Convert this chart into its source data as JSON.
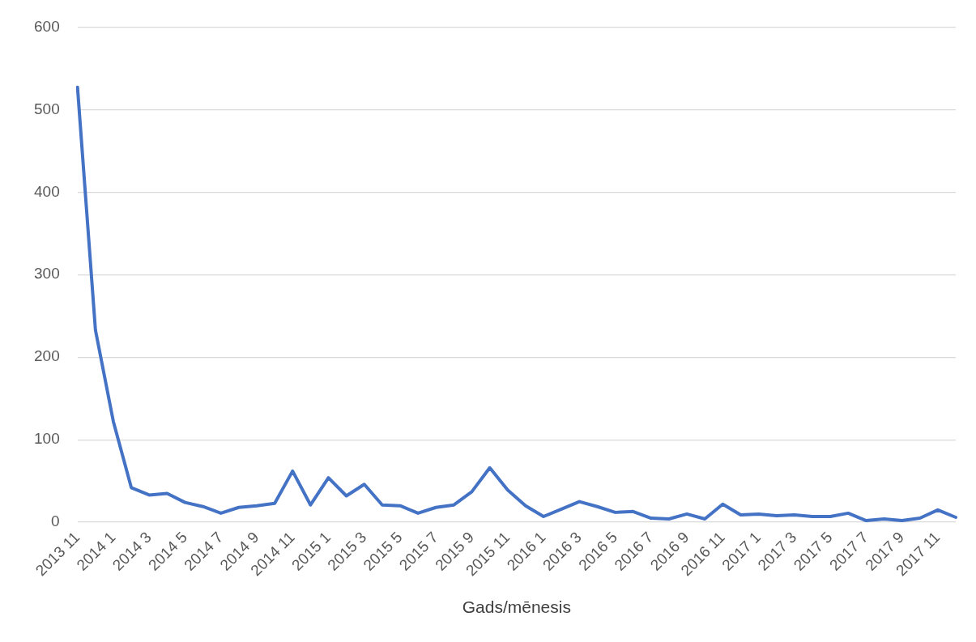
{
  "chart_data": {
    "type": "line",
    "xlabel": "Gads/mēnesis",
    "categories": [
      "2013 11",
      null,
      "2014 1",
      null,
      "2014 3",
      null,
      "2014 5",
      null,
      "2014 7",
      null,
      "2014 9",
      null,
      "2014 11",
      null,
      "2015 1",
      null,
      "2015 3",
      null,
      "2015 5",
      null,
      "2015 7",
      null,
      "2015 9",
      null,
      "2015 11",
      null,
      "2016 1",
      null,
      "2016 3",
      null,
      "2016 5",
      null,
      "2016 7",
      null,
      "2016 9",
      null,
      "2016 11",
      null,
      "2017 1",
      null,
      "2017 3",
      null,
      "2017 5",
      null,
      "2017 7",
      null,
      "2017 9",
      null,
      "2017 11",
      null
    ],
    "series": [
      {
        "color": "#4472c4",
        "values": [
          527,
          233,
          122,
          42,
          33,
          35,
          24,
          19,
          11,
          18,
          20,
          23,
          62,
          21,
          54,
          32,
          46,
          21,
          20,
          11,
          18,
          21,
          37,
          66,
          39,
          20,
          7,
          16,
          25,
          19,
          12,
          13,
          5,
          4,
          10,
          4,
          22,
          9,
          10,
          8,
          9,
          7,
          7,
          11,
          2,
          4,
          2,
          5,
          15,
          6
        ]
      }
    ],
    "ylim": [
      0,
      600
    ],
    "yticks": [
      0,
      100,
      200,
      300,
      400,
      500,
      600
    ],
    "grid": "y",
    "legend": false,
    "marker": "none",
    "line_style": "solid"
  }
}
